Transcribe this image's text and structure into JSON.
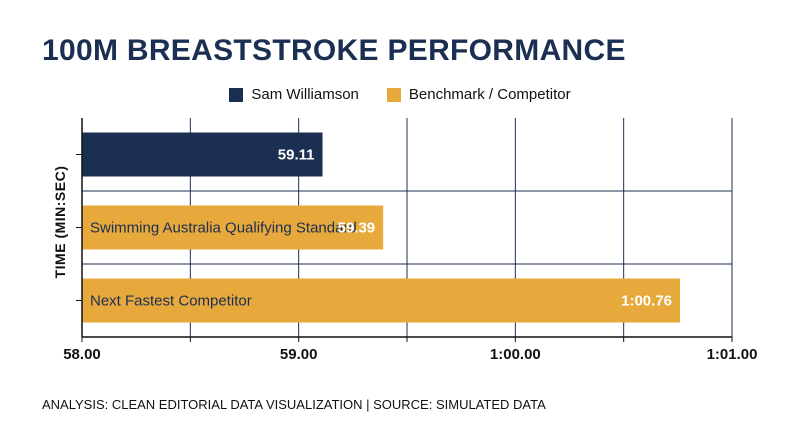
{
  "page": {
    "footer": "ANALYSIS: CLEAN EDITORIAL DATA VISUALIZATION | SOURCE: SIMULATED DATA"
  },
  "colors": {
    "primary": "#1b2f52",
    "benchmark": "#e8a93c",
    "grid": "#1b2f52"
  },
  "chart_data": {
    "type": "bar",
    "orientation": "horizontal",
    "title": "100M BREASTSTROKE PERFORMANCE",
    "ylabel": "TIME (MIN:SEC)",
    "xlabel": "",
    "legend": {
      "placement": "top-center",
      "entries": [
        {
          "name": "Sam Williamson",
          "color": "#1b2f52"
        },
        {
          "name": "Benchmark / Competitor",
          "color": "#e8a93c"
        }
      ]
    },
    "xlim": [
      58.0,
      61.0
    ],
    "x_ticks": [
      {
        "value": 58.0,
        "label": "58.00"
      },
      {
        "value": 59.0,
        "label": "59.00"
      },
      {
        "value": 60.0,
        "label": "1:00.00"
      },
      {
        "value": 61.0,
        "label": "1:01.00"
      }
    ],
    "grid": true,
    "bars": [
      {
        "category": "",
        "value": 59.11,
        "label": "59.11",
        "series": "Sam Williamson"
      },
      {
        "category": "Swimming Australia Qualifying Standard",
        "value": 59.39,
        "label": "59.39",
        "series": "Benchmark / Competitor"
      },
      {
        "category": "Next Fastest Competitor",
        "value": 60.76,
        "label": "1:00.76",
        "series": "Benchmark / Competitor"
      }
    ]
  }
}
